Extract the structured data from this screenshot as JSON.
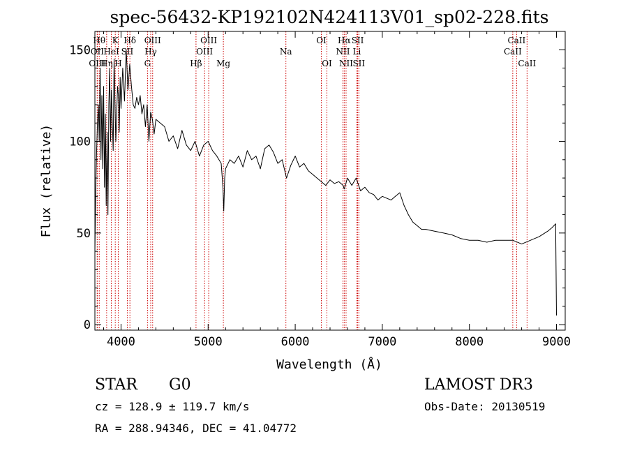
{
  "chart_data": {
    "type": "line",
    "title": "spec-56432-KP192102N424113V01_sp02-228.fits",
    "xlabel": "Wavelength (Å)",
    "ylabel": "Flux (relative)",
    "xlim": [
      3700,
      9100
    ],
    "ylim": [
      -3,
      160
    ],
    "x_ticks": [
      4000,
      5000,
      6000,
      7000,
      8000,
      9000
    ],
    "y_ticks": [
      0,
      50,
      100,
      150
    ],
    "series": [
      {
        "x": [
          3700,
          3710,
          3720,
          3730,
          3740,
          3750,
          3760,
          3770,
          3780,
          3790,
          3800,
          3810,
          3820,
          3830,
          3840,
          3850,
          3860,
          3870,
          3880,
          3890,
          3900,
          3910,
          3920,
          3930,
          3940,
          3950,
          3960,
          3970,
          3980,
          3990,
          4000,
          4020,
          4040,
          4060,
          4080,
          4100,
          4120,
          4140,
          4160,
          4180,
          4200,
          4220,
          4240,
          4260,
          4280,
          4300,
          4320,
          4340,
          4360,
          4380,
          4400,
          4450,
          4500,
          4550,
          4600,
          4650,
          4700,
          4750,
          4800,
          4850,
          4900,
          4950,
          5000,
          5050,
          5100,
          5150,
          5170,
          5180,
          5190,
          5200,
          5250,
          5300,
          5350,
          5400,
          5450,
          5500,
          5550,
          5600,
          5650,
          5700,
          5750,
          5800,
          5850,
          5890,
          5900,
          5950,
          6000,
          6050,
          6100,
          6150,
          6200,
          6250,
          6300,
          6350,
          6400,
          6450,
          6500,
          6550,
          6563,
          6600,
          6650,
          6700,
          6750,
          6800,
          6850,
          6900,
          6950,
          7000,
          7050,
          7100,
          7150,
          7200,
          7250,
          7300,
          7350,
          7400,
          7450,
          7500,
          7600,
          7700,
          7800,
          7900,
          8000,
          8100,
          8200,
          8300,
          8400,
          8500,
          8600,
          8700,
          8800,
          8900,
          8950,
          8990,
          9000
        ],
        "y": [
          40,
          75,
          95,
          110,
          120,
          100,
          140,
          90,
          125,
          85,
          130,
          75,
          115,
          65,
          105,
          60,
          120,
          140,
          100,
          128,
          110,
          95,
          145,
          122,
          100,
          115,
          130,
          125,
          105,
          135,
          118,
          140,
          122,
          150,
          128,
          142,
          130,
          120,
          118,
          124,
          120,
          125,
          115,
          120,
          108,
          120,
          100,
          116,
          112,
          104,
          112,
          110,
          108,
          100,
          103,
          96,
          106,
          98,
          95,
          100,
          92,
          98,
          100,
          95,
          92,
          88,
          75,
          62,
          80,
          85,
          90,
          88,
          92,
          86,
          95,
          90,
          92,
          85,
          96,
          98,
          94,
          88,
          90,
          82,
          80,
          87,
          92,
          86,
          88,
          84,
          82,
          80,
          78,
          76,
          79,
          77,
          78,
          76,
          74,
          80,
          76,
          80,
          73,
          75,
          72,
          71,
          68,
          70,
          69,
          68,
          70,
          72,
          65,
          60,
          56,
          54,
          52,
          52,
          51,
          50,
          49,
          47,
          46,
          46,
          45,
          46,
          46,
          46,
          44,
          46,
          48,
          51,
          53,
          55,
          5
        ]
      }
    ],
    "lines": [
      {
        "label": "OII",
        "wave": 3727,
        "row": 2
      },
      {
        "label": "OIII",
        "wave": 3727,
        "row": 3
      },
      {
        "label": "Hθ",
        "wave": 3750,
        "row": 1
      },
      {
        "label": "Hη",
        "wave": 3835,
        "row": 3
      },
      {
        "label": "HeI",
        "wave": 3889,
        "row": 2
      },
      {
        "label": "K",
        "wave": 3934,
        "row": 1
      },
      {
        "label": "H",
        "wave": 3968,
        "row": 3
      },
      {
        "label": "SII",
        "wave": 4072,
        "row": 2
      },
      {
        "label": "Hδ",
        "wave": 4102,
        "row": 1
      },
      {
        "label": "OIII",
        "wave": 4363,
        "row": 1
      },
      {
        "label": "Hγ",
        "wave": 4341,
        "row": 2
      },
      {
        "label": "G",
        "wave": 4304,
        "row": 3
      },
      {
        "label": "Hβ",
        "wave": 4861,
        "row": 3
      },
      {
        "label": "OIII",
        "wave": 5007,
        "row": 1
      },
      {
        "label": "OIII",
        "wave": 4959,
        "row": 2
      },
      {
        "label": "Mg",
        "wave": 5175,
        "row": 3
      },
      {
        "label": "Na",
        "wave": 5893,
        "row": 2
      },
      {
        "label": "OI",
        "wave": 6300,
        "row": 1
      },
      {
        "label": "OI",
        "wave": 6364,
        "row": 3
      },
      {
        "label": "Hα",
        "wave": 6563,
        "row": 1
      },
      {
        "label": "NII",
        "wave": 6548,
        "row": 2
      },
      {
        "label": "NII",
        "wave": 6584,
        "row": 3
      },
      {
        "label": "SII",
        "wave": 6717,
        "row": 1
      },
      {
        "label": "Li",
        "wave": 6708,
        "row": 2
      },
      {
        "label": "SII",
        "wave": 6731,
        "row": 3
      },
      {
        "label": "CaII",
        "wave": 8542,
        "row": 1
      },
      {
        "label": "CaII",
        "wave": 8498,
        "row": 2
      },
      {
        "label": "CaII",
        "wave": 8662,
        "row": 3
      }
    ],
    "colors": {
      "line": "#000000",
      "marker": "#cc0000",
      "axis": "#000000"
    }
  },
  "info": {
    "object_class": "STAR",
    "subclass": "G0",
    "survey": "LAMOST DR3",
    "cz": "cz = 128.9 ± 119.7 km/s",
    "obs_date": "Obs-Date: 20130519",
    "coords": "RA = 288.94346, DEC =  41.04772"
  }
}
